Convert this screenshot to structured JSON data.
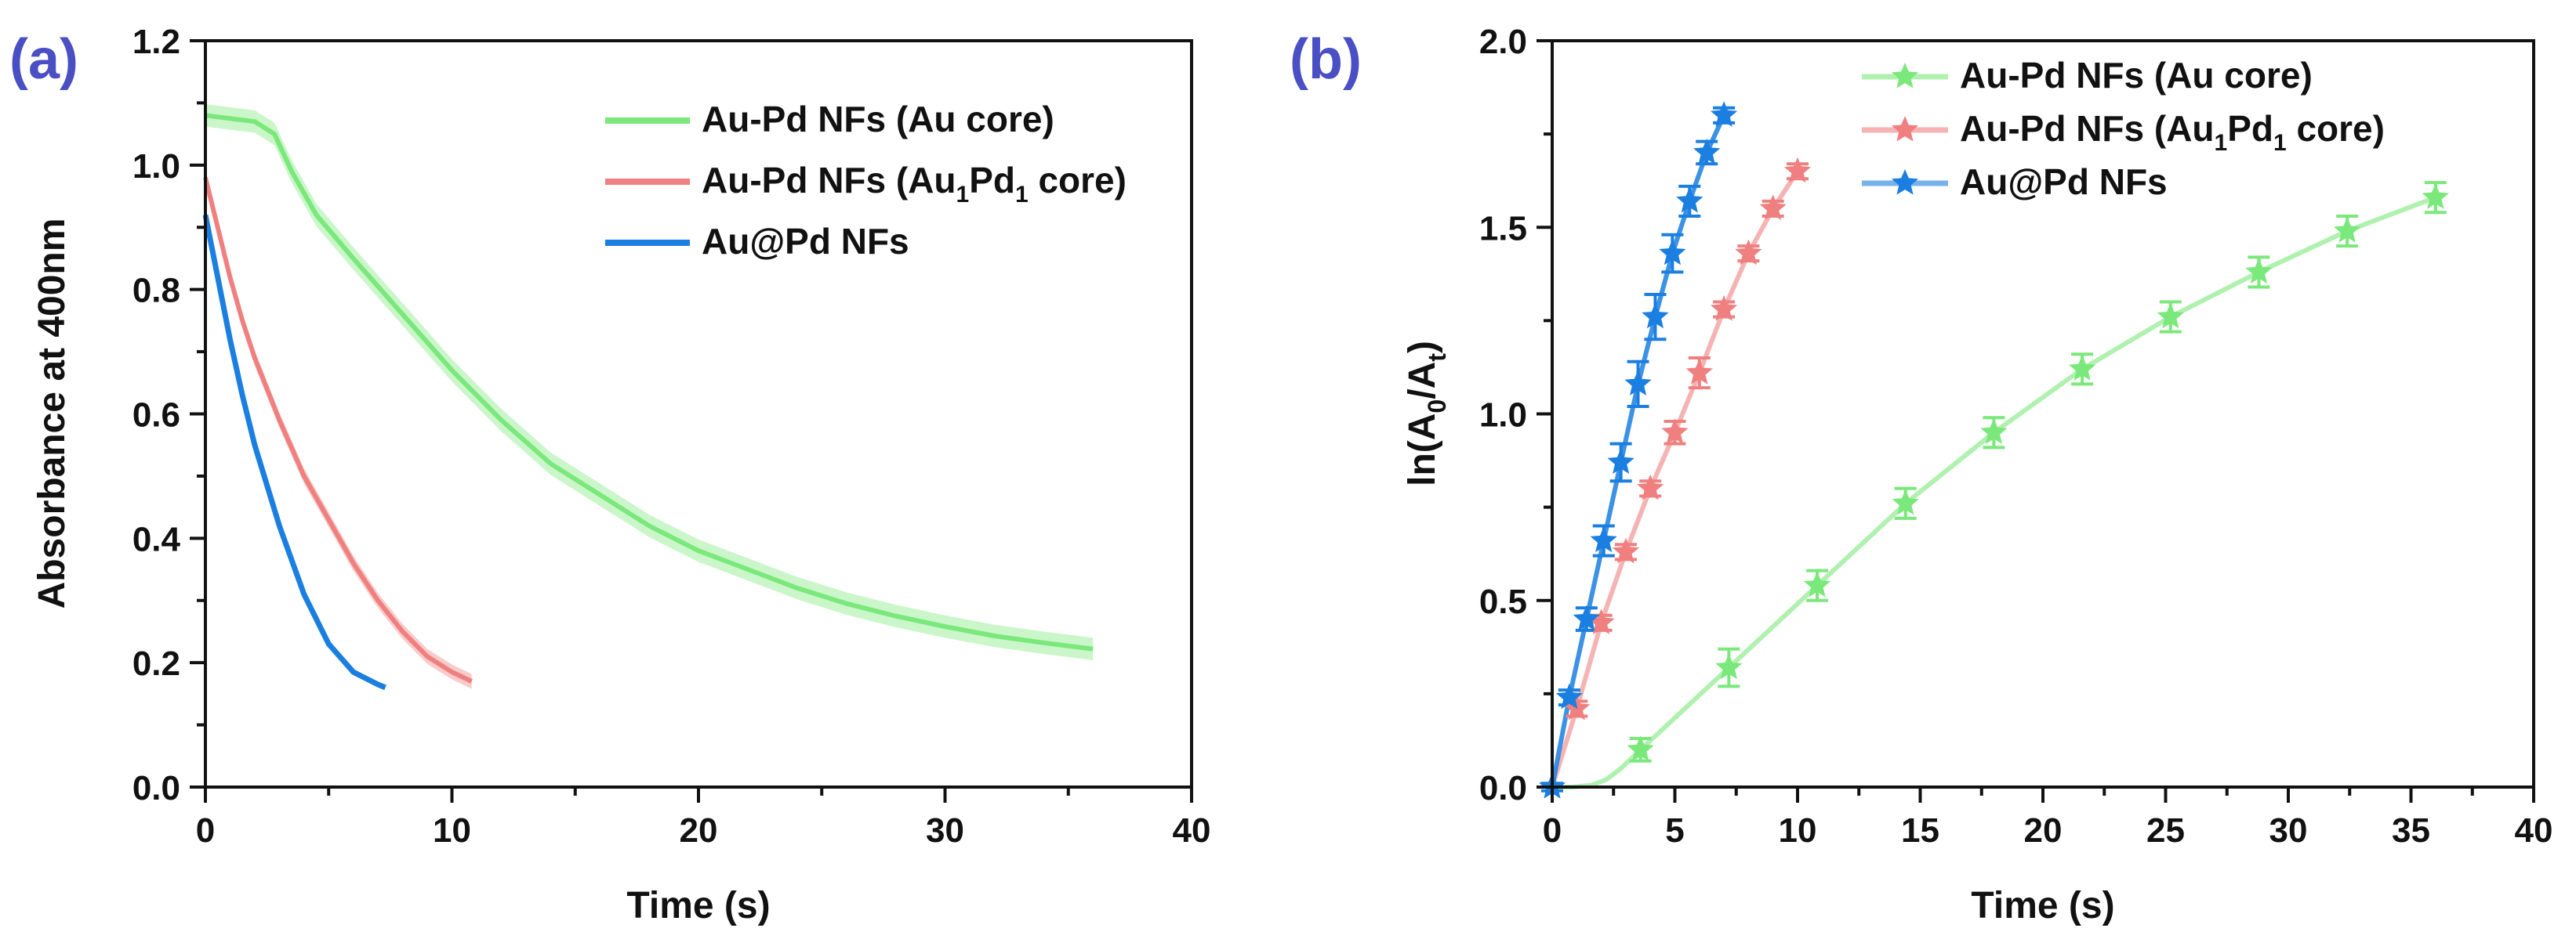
{
  "colors": {
    "green": "#7be87b",
    "red": "#f08080",
    "blue": "#1a7fe0",
    "panel_label": "#4a4fc4"
  },
  "chart_data": [
    {
      "panel": "(a)",
      "type": "line",
      "xlabel": "Time (s)",
      "ylabel": "Absorbance at 400nm",
      "xlim": [
        0,
        40
      ],
      "ylim": [
        0,
        1.2
      ],
      "xticks": [
        "0",
        "10",
        "20",
        "30",
        "40"
      ],
      "yticks": [
        "0.0",
        "0.2",
        "0.4",
        "0.6",
        "0.8",
        "1.0",
        "1.2"
      ],
      "legend": "top-right",
      "series": [
        {
          "name": "Au-Pd NFs (Au core)",
          "label_main": "Au-Pd NFs (Au core)",
          "label_sub1": "",
          "label_mid": "",
          "label_sub2": "",
          "label_tail": "",
          "color_key": "green",
          "band": 0.018,
          "x": [
            0,
            1,
            2,
            2.8,
            3.5,
            4.5,
            6,
            8,
            10,
            12,
            14,
            16,
            18,
            20,
            22,
            24,
            26,
            28,
            30,
            32,
            34,
            36
          ],
          "y": [
            1.08,
            1.075,
            1.07,
            1.05,
            0.99,
            0.92,
            0.85,
            0.76,
            0.67,
            0.59,
            0.52,
            0.47,
            0.42,
            0.38,
            0.35,
            0.32,
            0.295,
            0.275,
            0.258,
            0.243,
            0.232,
            0.222
          ]
        },
        {
          "name": "Au-Pd NFs (Au1Pd1 core)",
          "label_main": "Au-Pd NFs (Au",
          "label_sub1": "1",
          "label_mid": "Pd",
          "label_sub2": "1",
          "label_tail": " core)",
          "color_key": "red",
          "band": 0.012,
          "x": [
            0,
            0.5,
            1,
            1.5,
            2,
            3,
            4,
            5,
            6,
            7,
            8,
            9,
            10,
            10.8
          ],
          "y": [
            0.98,
            0.9,
            0.82,
            0.75,
            0.69,
            0.59,
            0.5,
            0.43,
            0.36,
            0.3,
            0.25,
            0.21,
            0.185,
            0.17
          ]
        },
        {
          "name": "Au@Pd NFs",
          "label_main": "Au@Pd NFs",
          "label_sub1": "",
          "label_mid": "",
          "label_sub2": "",
          "label_tail": "",
          "color_key": "blue",
          "band": 0,
          "x": [
            0,
            0.5,
            1,
            1.5,
            2,
            3,
            4,
            5,
            6,
            7,
            7.3
          ],
          "y": [
            0.92,
            0.82,
            0.72,
            0.63,
            0.55,
            0.42,
            0.31,
            0.23,
            0.185,
            0.165,
            0.16
          ]
        }
      ]
    },
    {
      "panel": "(b)",
      "type": "line",
      "xlabel": "Time (s)",
      "ylabel": "ln(A0/At)",
      "ylabel_parts": {
        "main": "ln(A",
        "sub1": "0",
        "mid": "/A",
        "sub2": "t",
        "tail": ")"
      },
      "xlim": [
        0,
        40
      ],
      "ylim": [
        0,
        2.0
      ],
      "xticks": [
        "0",
        "5",
        "10",
        "15",
        "20",
        "25",
        "30",
        "35",
        "40"
      ],
      "yticks": [
        "0.0",
        "0.5",
        "1.0",
        "1.5",
        "2.0"
      ],
      "legend": "top-center",
      "series": [
        {
          "name": "Au-Pd NFs (Au core)",
          "label_main": "Au-Pd NFs (Au core)",
          "label_sub1": "",
          "label_mid": "",
          "label_sub2": "",
          "label_tail": "",
          "color_key": "green",
          "curve_x": [
            0,
            0.8,
            1.6,
            2.2,
            2.8,
            3.6
          ],
          "curve_y": [
            0,
            0.0,
            0.005,
            0.02,
            0.05,
            0.1
          ],
          "x": [
            3.6,
            7.2,
            10.8,
            14.4,
            18,
            21.6,
            25.2,
            28.8,
            32.4,
            36
          ],
          "y": [
            0.1,
            0.32,
            0.54,
            0.76,
            0.95,
            1.12,
            1.26,
            1.38,
            1.49,
            1.58
          ],
          "err": [
            0.03,
            0.05,
            0.04,
            0.04,
            0.04,
            0.04,
            0.04,
            0.04,
            0.04,
            0.04
          ]
        },
        {
          "name": "Au-Pd NFs (Au1Pd1 core)",
          "label_main": "Au-Pd NFs (Au",
          "label_sub1": "1",
          "label_mid": "Pd",
          "label_sub2": "1",
          "label_tail": " core)",
          "color_key": "red",
          "curve_x": [
            0
          ],
          "curve_y": [
            0
          ],
          "x": [
            1,
            2,
            3,
            4,
            5,
            6,
            7,
            8,
            9,
            10
          ],
          "y": [
            0.21,
            0.44,
            0.63,
            0.8,
            0.95,
            1.11,
            1.28,
            1.43,
            1.55,
            1.65
          ],
          "err": [
            0.02,
            0.02,
            0.02,
            0.02,
            0.03,
            0.04,
            0.02,
            0.02,
            0.02,
            0.02
          ]
        },
        {
          "name": "Au@Pd NFs",
          "label_main": "Au@Pd NFs",
          "label_sub1": "",
          "label_mid": "",
          "label_sub2": "",
          "label_tail": "",
          "color_key": "blue",
          "curve_x": [
            0
          ],
          "curve_y": [
            0
          ],
          "x": [
            0,
            0.7,
            1.4,
            2.1,
            2.8,
            3.5,
            4.2,
            4.9,
            5.6,
            6.3,
            7.0
          ],
          "y": [
            0,
            0.24,
            0.45,
            0.66,
            0.87,
            1.08,
            1.26,
            1.43,
            1.57,
            1.7,
            1.8
          ],
          "err": [
            0.01,
            0.02,
            0.03,
            0.04,
            0.05,
            0.06,
            0.06,
            0.05,
            0.04,
            0.03,
            0.02
          ]
        }
      ]
    }
  ]
}
